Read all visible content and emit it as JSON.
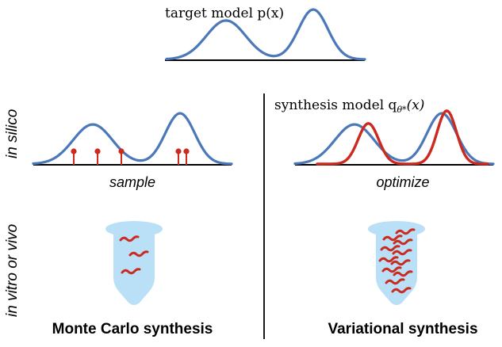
{
  "top": {
    "label": "target model p(x)"
  },
  "left": {
    "step_label": "sample",
    "title": "Monte Carlo synthesis"
  },
  "right": {
    "model_label": "synthesis model q",
    "model_label_sub": "θ*",
    "model_label_arg": "(x)",
    "step_label": "optimize",
    "title": "Variational synthesis"
  },
  "row_labels": {
    "silico": "in silico",
    "vitro": "in vitro or vivo"
  },
  "colors": {
    "target_curve": "#4a78b8",
    "synthesis_curve": "#cc2a1e",
    "samples": "#cc2a1e",
    "tube": "#b9e0f7",
    "axis": "#000000"
  }
}
